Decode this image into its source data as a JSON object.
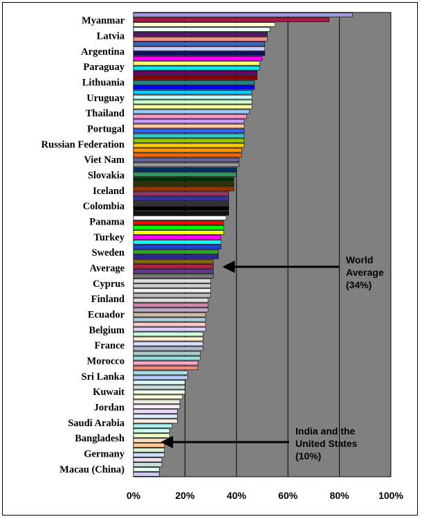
{
  "chart_data": {
    "type": "bar",
    "orientation": "horizontal",
    "x_unit": "%",
    "xlim": [
      0,
      100
    ],
    "x_ticks": [
      "0%",
      "20%",
      "40%",
      "60%",
      "80%",
      "100%"
    ],
    "grid": "vertical",
    "plot_background": "#808080",
    "labeled_categories": [
      "Myanmar",
      "Latvia",
      "Argentina",
      "Paraguay",
      "Lithuania",
      "Uruguay",
      "Thailand",
      "Portugal",
      "Russian Federation",
      "Viet Nam",
      "Slovakia",
      "Iceland",
      "Colombia",
      "Panama",
      "Turkey",
      "Sweden",
      "Average",
      "Cyprus",
      "Finland",
      "Ecuador",
      "Belgium",
      "France",
      "Morocco",
      "Sri Lanka",
      "Kuwait",
      "Jordan",
      "Saudi Arabia",
      "Bangladesh",
      "Germany",
      "Macau (China)"
    ],
    "values": [
      85,
      76,
      55,
      53,
      52,
      52,
      51,
      51,
      51,
      50,
      49,
      49,
      48,
      48,
      47,
      47,
      46,
      46,
      46,
      46,
      45,
      44,
      43,
      43,
      43,
      43,
      43,
      43,
      42,
      42,
      41,
      41,
      40,
      40,
      39,
      39,
      39,
      37,
      37,
      37,
      37,
      37,
      36,
      35,
      35,
      35,
      34,
      34,
      34,
      33,
      33,
      31,
      31,
      31,
      31,
      30,
      30,
      30,
      30,
      29,
      29,
      29,
      28,
      28,
      28,
      28,
      27,
      27,
      27,
      27,
      26,
      26,
      25,
      25,
      21,
      21,
      20,
      20,
      20,
      19,
      18,
      18,
      17,
      17,
      17,
      15,
      14,
      14,
      13,
      12,
      12,
      12,
      11,
      11,
      10,
      10
    ],
    "colors": [
      "#9a9ae6",
      "#a01c44",
      "#ffffcc",
      "#e8fbfb",
      "#5a1468",
      "#f28e8e",
      "#3268c8",
      "#c8c8ff",
      "#10106e",
      "#ff00ff",
      "#ffff66",
      "#10e6e6",
      "#6a006a",
      "#8a0000",
      "#1a8a8a",
      "#0000ff",
      "#00ccff",
      "#ccffff",
      "#ccffcc",
      "#ffff99",
      "#99ccff",
      "#ff99cc",
      "#cc99ff",
      "#ffcc99",
      "#3366ff",
      "#33cccc",
      "#99cc00",
      "#ffcc00",
      "#ff9900",
      "#ff6600",
      "#666699",
      "#969696",
      "#003366",
      "#339966",
      "#003300",
      "#333300",
      "#993300",
      "#993366",
      "#333399",
      "#333333",
      "#000000",
      "#111111",
      "#ffffff",
      "#ff0000",
      "#00ff00",
      "#ffff00",
      "#ff00ff",
      "#00ffff",
      "#2244cc",
      "#22aa22",
      "#2a2a8a",
      "#886600",
      "#aa2244",
      "#663399",
      "#777777",
      "#dddddd",
      "#cccccc",
      "#eeeeee",
      "#bbbbbb",
      "#dddddd",
      "#cc88aa",
      "#bbaacc",
      "#ccbbaa",
      "#aaccdd",
      "#ffcccc",
      "#ddccff",
      "#ccffdd",
      "#ffeecc",
      "#ddddff",
      "#aabbcc",
      "#aacccc",
      "#99dddd",
      "#ffaacc",
      "#ee8877",
      "#aaddee",
      "#bbccff",
      "#ddffff",
      "#ccdddd",
      "#eeffee",
      "#ffffdd",
      "#eeeedd",
      "#ffeeff",
      "#eeddff",
      "#ddeeff",
      "#ffeedd",
      "#aaeeee",
      "#ccffee",
      "#eeffcc",
      "#ffddbb",
      "#ffcc99",
      "#ddeecc",
      "#ccddff",
      "#eeddee",
      "#ccdddd",
      "#ddffee",
      "#ccccee"
    ],
    "annotations": [
      {
        "lines": [
          "World",
          "Average",
          "(34%)"
        ],
        "points_to": 34
      },
      {
        "lines": [
          "India and the",
          "United States",
          "(10%)"
        ],
        "points_to": 10
      }
    ]
  }
}
